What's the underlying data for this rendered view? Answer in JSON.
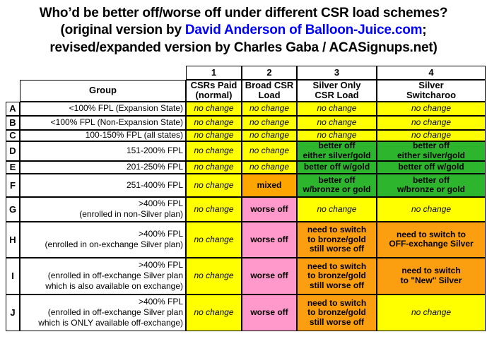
{
  "title": {
    "line1": "Who’d be better off/worse off under different CSR load schemes?",
    "line2_prefix": "(original version by ",
    "line2_link": "David Anderson of Balloon-Juice.com",
    "line2_suffix": ";",
    "line3": "revised/expanded version by Charles Gaba / ACASignups.net)"
  },
  "colors": {
    "yellow": "#ffff00",
    "green": "#2eb52e",
    "orange": "#ffa500",
    "orange_deep": "#fb9e10",
    "pink": "#ff99cc",
    "link_blue": "#0000ff",
    "border": "#000000",
    "text": "#000000"
  },
  "chart_data": {
    "type": "table",
    "title": "Who’d be better off/worse off under different CSR load schemes?",
    "column_numbers": [
      "1",
      "2",
      "3",
      "4"
    ],
    "group_header": "Group",
    "column_headers": [
      "CSRs Paid\n(normal)",
      "Broad CSR\nLoad",
      "Silver Only\nCSR Load",
      "Silver\nSwitcharoo"
    ],
    "rows": [
      {
        "letter": "A",
        "group": "<100% FPL (Expansion State)",
        "cells": [
          {
            "text": "no change",
            "bg": "yellow",
            "emphasis": "italic"
          },
          {
            "text": "no change",
            "bg": "yellow",
            "emphasis": "italic"
          },
          {
            "text": "no change",
            "bg": "yellow",
            "emphasis": "italic"
          },
          {
            "text": "no change",
            "bg": "yellow",
            "emphasis": "italic"
          }
        ]
      },
      {
        "letter": "B",
        "group": "<100% FPL (Non-Expansion State)",
        "cells": [
          {
            "text": "no change",
            "bg": "yellow",
            "emphasis": "italic"
          },
          {
            "text": "no change",
            "bg": "yellow",
            "emphasis": "italic"
          },
          {
            "text": "no change",
            "bg": "yellow",
            "emphasis": "italic"
          },
          {
            "text": "no change",
            "bg": "yellow",
            "emphasis": "italic"
          }
        ]
      },
      {
        "letter": "C",
        "group": "100-150% FPL (all states)",
        "cells": [
          {
            "text": "no change",
            "bg": "yellow",
            "emphasis": "italic"
          },
          {
            "text": "no change",
            "bg": "yellow",
            "emphasis": "italic"
          },
          {
            "text": "no change",
            "bg": "yellow",
            "emphasis": "italic"
          },
          {
            "text": "no change",
            "bg": "yellow",
            "emphasis": "italic"
          }
        ]
      },
      {
        "letter": "D",
        "group": "151-200% FPL",
        "cells": [
          {
            "text": "no change",
            "bg": "yellow",
            "emphasis": "italic"
          },
          {
            "text": "no change",
            "bg": "yellow",
            "emphasis": "italic"
          },
          {
            "text": "better off\neither silver/gold",
            "bg": "green",
            "emphasis": "bold"
          },
          {
            "text": "better off\neither silver/gold",
            "bg": "green",
            "emphasis": "bold"
          }
        ]
      },
      {
        "letter": "E",
        "group": "201-250% FPL",
        "cells": [
          {
            "text": "no change",
            "bg": "yellow",
            "emphasis": "italic"
          },
          {
            "text": "no change",
            "bg": "yellow",
            "emphasis": "italic"
          },
          {
            "text": "better off w/gold",
            "bg": "green",
            "emphasis": "bold"
          },
          {
            "text": "better off w/gold",
            "bg": "green",
            "emphasis": "bold"
          }
        ]
      },
      {
        "letter": "F",
        "group": "251-400% FPL",
        "cells": [
          {
            "text": "no change",
            "bg": "yellow",
            "emphasis": "italic"
          },
          {
            "text": "mixed",
            "bg": "orange",
            "emphasis": "bold"
          },
          {
            "text": "better off\nw/bronze or gold",
            "bg": "green",
            "emphasis": "bold"
          },
          {
            "text": "better off\nw/bronze or gold",
            "bg": "green",
            "emphasis": "bold"
          }
        ]
      },
      {
        "letter": "G",
        "group": ">400% FPL\n(enrolled in non-Silver plan)",
        "cells": [
          {
            "text": "no change",
            "bg": "yellow",
            "emphasis": "italic"
          },
          {
            "text": "worse off",
            "bg": "pink",
            "emphasis": "bold"
          },
          {
            "text": "no change",
            "bg": "yellow",
            "emphasis": "italic"
          },
          {
            "text": "no change",
            "bg": "yellow",
            "emphasis": "italic"
          }
        ]
      },
      {
        "letter": "H",
        "group": ">400% FPL\n(enrolled in on-exchange Silver plan)",
        "cells": [
          {
            "text": "no change",
            "bg": "yellow",
            "emphasis": "italic"
          },
          {
            "text": "worse off",
            "bg": "pink",
            "emphasis": "bold"
          },
          {
            "text": "need to switch\nto bronze/gold\nstill worse off",
            "bg": "orange_deep",
            "emphasis": "bold"
          },
          {
            "text": "need to switch to\nOFF-exchange Silver",
            "bg": "orange_deep",
            "emphasis": "bold"
          }
        ]
      },
      {
        "letter": "I",
        "group": ">400% FPL\n(enrolled in off-exchange Silver plan\nwhich is also available on exchange)",
        "cells": [
          {
            "text": "no change",
            "bg": "yellow",
            "emphasis": "italic"
          },
          {
            "text": "worse off",
            "bg": "pink",
            "emphasis": "bold"
          },
          {
            "text": "need to switch\nto bronze/gold\nstill worse off",
            "bg": "orange_deep",
            "emphasis": "bold"
          },
          {
            "text": "need to switch\nto \"New\" Silver",
            "bg": "orange_deep",
            "emphasis": "bold"
          }
        ]
      },
      {
        "letter": "J",
        "group": ">400% FPL\n(enrolled in off-exchange Silver plan\nwhich is ONLY available off-exchange)",
        "cells": [
          {
            "text": "no change",
            "bg": "yellow",
            "emphasis": "italic"
          },
          {
            "text": "worse off",
            "bg": "pink",
            "emphasis": "bold"
          },
          {
            "text": "need to switch\nto bronze/gold\nstill worse off",
            "bg": "orange_deep",
            "emphasis": "bold"
          },
          {
            "text": "no change",
            "bg": "yellow",
            "emphasis": "italic"
          }
        ]
      }
    ]
  }
}
